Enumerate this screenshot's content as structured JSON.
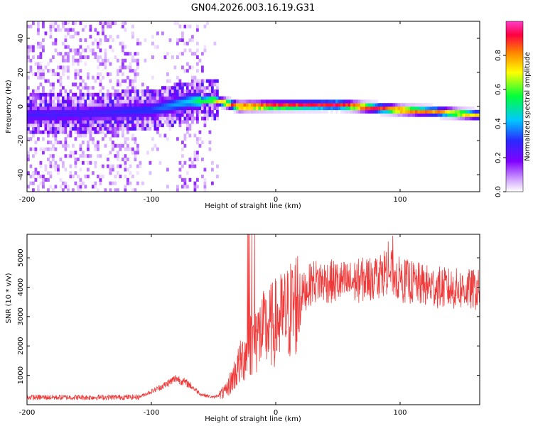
{
  "title": "GN04.2026.003.16.19.G31",
  "colors": {
    "snr_line": "#f03a3a",
    "colormap": [
      "#ffffff",
      "#d9b3ff",
      "#7f00ff",
      "#2a2aff",
      "#00c8ff",
      "#00ff3c",
      "#ffff00",
      "#ff8000",
      "#ff0040",
      "#ff3cc8"
    ]
  },
  "chart_data": [
    {
      "type": "heatmap",
      "title": "GN04.2026.003.16.19.G31",
      "xlabel": "Height of straight line (km)",
      "ylabel": "Frequency (Hz)",
      "xlim": [
        -200,
        164
      ],
      "ylim": [
        -50,
        50
      ],
      "xticks": [
        -200,
        -100,
        0,
        100
      ],
      "yticks": [
        -40,
        -20,
        0,
        20,
        40
      ],
      "xtick_labels": [
        "-200",
        "-100",
        "0",
        "100"
      ],
      "ytick_labels": [
        "-40",
        "-20",
        "0",
        "20",
        "40"
      ],
      "colorbar": {
        "label": "Normalized spectral amplitude",
        "range": [
          0,
          1
        ],
        "ticks": [
          0.0,
          0.2,
          0.4,
          0.6,
          0.8
        ],
        "tick_labels": [
          "0.0",
          "0.2",
          "0.4",
          "0.6",
          "0.8"
        ]
      },
      "ridge": {
        "description_points_height_km": [
          -200,
          -150,
          -100,
          -70,
          -50,
          -30,
          0,
          50,
          100,
          130,
          164
        ],
        "center_frequency_hz": [
          -5,
          -4,
          -2,
          3,
          4,
          0,
          0.5,
          1,
          -2,
          -3,
          -5
        ],
        "peak_amplitude": [
          0.3,
          0.3,
          0.35,
          0.45,
          0.7,
          0.95,
          0.95,
          0.95,
          0.9,
          0.85,
          0.75
        ]
      }
    },
    {
      "type": "line",
      "xlabel": "Height of straight line (km)",
      "ylabel": "SNR (10 * v/v)",
      "xlim": [
        -200,
        164
      ],
      "ylim": [
        0,
        5800
      ],
      "xticks": [
        -200,
        -100,
        0,
        100
      ],
      "yticks": [
        1000,
        2000,
        3000,
        4000,
        5000
      ],
      "xtick_labels": [
        "-200",
        "-100",
        "0",
        "100"
      ],
      "ytick_labels": [
        "1000",
        "2000",
        "3000",
        "4000",
        "5000"
      ],
      "series": [
        {
          "name": "SNR",
          "x": [
            -200,
            -150,
            -110,
            -100,
            -90,
            -80,
            -70,
            -60,
            -50,
            -40,
            -30,
            -20,
            -10,
            0,
            10,
            20,
            30,
            40,
            60,
            80,
            90,
            100,
            120,
            140,
            164
          ],
          "values": [
            250,
            250,
            260,
            450,
            650,
            900,
            700,
            350,
            250,
            450,
            1300,
            2100,
            2500,
            2800,
            3100,
            3700,
            4200,
            4200,
            4150,
            4350,
            4600,
            4250,
            4050,
            3950,
            3900
          ]
        }
      ]
    }
  ]
}
